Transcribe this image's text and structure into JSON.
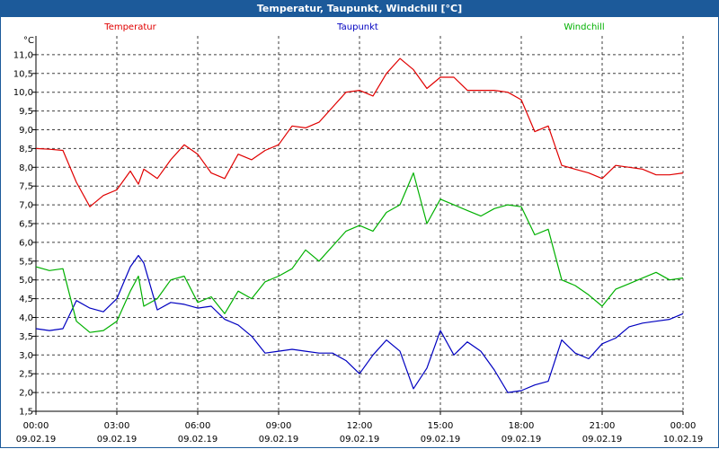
{
  "window": {
    "title": "Temperatur, Taupunkt, Windchill [°C]"
  },
  "chart_data": {
    "type": "line",
    "title": "Temperatur, Taupunkt, Windchill [°C]",
    "ylabel": "°C",
    "ylim": [
      1.5,
      11.5
    ],
    "y_ticks": [
      "1,5",
      "2,0",
      "2,5",
      "3,0",
      "3,5",
      "4,0",
      "4,5",
      "5,0",
      "5,5",
      "6,0",
      "6,5",
      "7,0",
      "7,5",
      "8,0",
      "8,5",
      "9,0",
      "9,5",
      "10,0",
      "10,5",
      "11,0"
    ],
    "x_ticks": [
      {
        "time": "00:00",
        "date": "09.02.19"
      },
      {
        "time": "03:00",
        "date": "09.02.19"
      },
      {
        "time": "06:00",
        "date": "09.02.19"
      },
      {
        "time": "09:00",
        "date": "09.02.19"
      },
      {
        "time": "12:00",
        "date": "09.02.19"
      },
      {
        "time": "15:00",
        "date": "09.02.19"
      },
      {
        "time": "18:00",
        "date": "09.02.19"
      },
      {
        "time": "21:00",
        "date": "09.02.19"
      },
      {
        "time": "00:00",
        "date": "10.02.19"
      }
    ],
    "xlim": [
      0,
      24
    ],
    "grid": true,
    "legend_placement": "top",
    "series": [
      {
        "name": "Temperatur",
        "color": "#e00000",
        "x": [
          0,
          0.5,
          1,
          1.5,
          2,
          2.5,
          3,
          3.5,
          3.8,
          4,
          4.5,
          5,
          5.5,
          6,
          6.5,
          7,
          7.5,
          8,
          8.5,
          9,
          9.5,
          10,
          10.5,
          11,
          11.5,
          12,
          12.5,
          13,
          13.5,
          14,
          14.5,
          15,
          15.5,
          16,
          16.5,
          17,
          17.5,
          18,
          18.5,
          19,
          19.5,
          20,
          20.5,
          21,
          21.5,
          22,
          22.5,
          23,
          23.5,
          24
        ],
        "y": [
          8.5,
          8.48,
          8.45,
          7.6,
          6.95,
          7.25,
          7.4,
          7.9,
          7.55,
          7.95,
          7.7,
          8.2,
          8.6,
          8.35,
          7.85,
          7.7,
          8.35,
          8.2,
          8.45,
          8.6,
          9.1,
          9.05,
          9.2,
          9.6,
          10.0,
          10.05,
          9.9,
          10.5,
          10.9,
          10.6,
          10.1,
          10.4,
          10.4,
          10.05,
          10.05,
          10.05,
          10.0,
          9.8,
          8.95,
          9.1,
          8.05,
          7.95,
          7.85,
          7.7,
          8.05,
          8.0,
          7.95,
          7.8,
          7.8,
          7.85
        ]
      },
      {
        "name": "Taupunkt",
        "color": "#0000c0",
        "x": [
          0,
          0.5,
          1,
          1.5,
          2,
          2.5,
          3,
          3.5,
          3.8,
          4,
          4.5,
          5,
          5.5,
          6,
          6.5,
          7,
          7.5,
          8,
          8.5,
          9,
          9.5,
          10,
          10.5,
          11,
          11.5,
          12,
          12.5,
          13,
          13.5,
          14,
          14.5,
          15,
          15.5,
          16,
          16.5,
          17,
          17.5,
          18,
          18.5,
          19,
          19.5,
          20,
          20.5,
          21,
          21.5,
          22,
          22.5,
          23,
          23.5,
          24
        ],
        "y": [
          3.7,
          3.65,
          3.7,
          4.45,
          4.25,
          4.15,
          4.5,
          5.35,
          5.65,
          5.45,
          4.2,
          4.4,
          4.35,
          4.25,
          4.3,
          3.95,
          3.8,
          3.5,
          3.05,
          3.1,
          3.15,
          3.1,
          3.05,
          3.05,
          2.85,
          2.5,
          3.0,
          3.4,
          3.1,
          2.1,
          2.65,
          3.65,
          3.0,
          3.35,
          3.1,
          2.6,
          2.0,
          2.05,
          2.2,
          2.3,
          3.4,
          3.05,
          2.9,
          3.3,
          3.45,
          3.75,
          3.85,
          3.9,
          3.95,
          4.1
        ]
      },
      {
        "name": "Windchill",
        "color": "#00b000",
        "x": [
          0,
          0.5,
          1,
          1.5,
          2,
          2.5,
          3,
          3.5,
          3.8,
          4,
          4.5,
          5,
          5.5,
          6,
          6.5,
          7,
          7.5,
          8,
          8.5,
          9,
          9.5,
          10,
          10.5,
          11,
          11.5,
          12,
          12.5,
          13,
          13.5,
          14,
          14.5,
          15,
          15.5,
          16,
          16.5,
          17,
          17.5,
          18,
          18.5,
          19,
          19.5,
          20,
          20.5,
          21,
          21.5,
          22,
          22.5,
          23,
          23.5,
          24
        ],
        "y": [
          5.35,
          5.25,
          5.3,
          3.9,
          3.6,
          3.65,
          3.9,
          4.7,
          5.1,
          4.3,
          4.5,
          5.0,
          5.1,
          4.4,
          4.55,
          4.1,
          4.7,
          4.5,
          4.95,
          5.1,
          5.3,
          5.8,
          5.5,
          5.9,
          6.3,
          6.45,
          6.3,
          6.8,
          7.0,
          7.85,
          6.5,
          7.15,
          7.0,
          6.85,
          6.7,
          6.9,
          7.0,
          6.95,
          6.2,
          6.35,
          5.0,
          4.85,
          4.6,
          4.3,
          4.75,
          4.9,
          5.05,
          5.2,
          5.0,
          5.05
        ]
      }
    ]
  }
}
